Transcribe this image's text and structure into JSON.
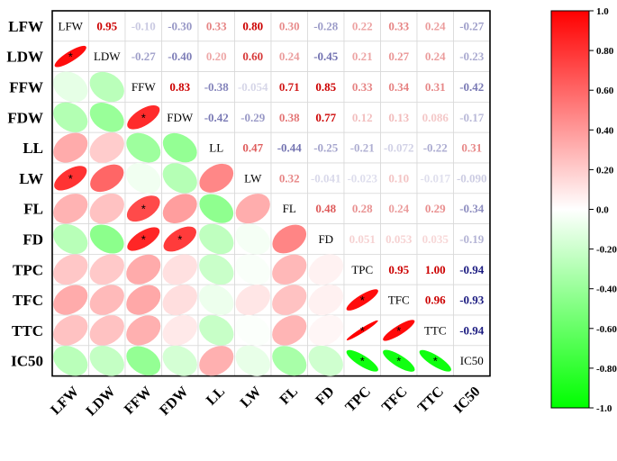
{
  "chart_data": {
    "type": "heatmap",
    "title": "",
    "variables": [
      "LFW",
      "LDW",
      "FFW",
      "FDW",
      "LL",
      "LW",
      "FL",
      "FD",
      "TPC",
      "TFC",
      "TTC",
      "IC50"
    ],
    "upper_values": [
      [
        null,
        0.95,
        -0.1,
        -0.3,
        0.33,
        0.8,
        0.3,
        -0.28,
        0.22,
        0.33,
        0.24,
        -0.27
      ],
      [
        null,
        null,
        -0.27,
        -0.4,
        0.2,
        0.6,
        0.24,
        -0.45,
        0.21,
        0.27,
        0.24,
        -0.23
      ],
      [
        null,
        null,
        null,
        0.83,
        -0.38,
        -0.054,
        0.71,
        0.85,
        0.33,
        0.34,
        0.31,
        -0.42
      ],
      [
        null,
        null,
        null,
        null,
        -0.42,
        -0.29,
        0.38,
        0.77,
        0.12,
        0.13,
        0.086,
        -0.17
      ],
      [
        null,
        null,
        null,
        null,
        null,
        0.47,
        -0.44,
        -0.25,
        -0.21,
        -0.072,
        -0.22,
        0.31
      ],
      [
        null,
        null,
        null,
        null,
        null,
        null,
        0.32,
        -0.041,
        -0.023,
        0.1,
        -0.017,
        -0.09
      ],
      [
        null,
        null,
        null,
        null,
        null,
        null,
        null,
        0.48,
        0.28,
        0.24,
        0.29,
        -0.34
      ],
      [
        null,
        null,
        null,
        null,
        null,
        null,
        null,
        null,
        0.051,
        0.053,
        0.035,
        -0.19
      ],
      [
        null,
        null,
        null,
        null,
        null,
        null,
        null,
        null,
        null,
        0.95,
        1.0,
        -0.94
      ],
      [
        null,
        null,
        null,
        null,
        null,
        null,
        null,
        null,
        null,
        null,
        0.96,
        -0.93
      ],
      [
        null,
        null,
        null,
        null,
        null,
        null,
        null,
        null,
        null,
        null,
        null,
        -0.94
      ],
      [
        null,
        null,
        null,
        null,
        null,
        null,
        null,
        null,
        null,
        null,
        null,
        null
      ]
    ],
    "upper_labels": [
      [
        null,
        "0.95",
        "-0.10",
        "-0.30",
        "0.33",
        "0.80",
        "0.30",
        "-0.28",
        "0.22",
        "0.33",
        "0.24",
        "-0.27"
      ],
      [
        null,
        null,
        "-0.27",
        "-0.40",
        "0.20",
        "0.60",
        "0.24",
        "-0.45",
        "0.21",
        "0.27",
        "0.24",
        "-0.23"
      ],
      [
        null,
        null,
        null,
        "0.83",
        "-0.38",
        "-0.054",
        "0.71",
        "0.85",
        "0.33",
        "0.34",
        "0.31",
        "-0.42"
      ],
      [
        null,
        null,
        null,
        null,
        "-0.42",
        "-0.29",
        "0.38",
        "0.77",
        "0.12",
        "0.13",
        "0.086",
        "-0.17"
      ],
      [
        null,
        null,
        null,
        null,
        null,
        "0.47",
        "-0.44",
        "-0.25",
        "-0.21",
        "-0.072",
        "-0.22",
        "0.31"
      ],
      [
        null,
        null,
        null,
        null,
        null,
        null,
        "0.32",
        "-0.041",
        "-0.023",
        "0.10",
        "-0.017",
        "-0.090"
      ],
      [
        null,
        null,
        null,
        null,
        null,
        null,
        null,
        "0.48",
        "0.28",
        "0.24",
        "0.29",
        "-0.34"
      ],
      [
        null,
        null,
        null,
        null,
        null,
        null,
        null,
        null,
        "0.051",
        "0.053",
        "0.035",
        "-0.19"
      ],
      [
        null,
        null,
        null,
        null,
        null,
        null,
        null,
        null,
        null,
        "0.95",
        "1.00",
        "-0.94"
      ],
      [
        null,
        null,
        null,
        null,
        null,
        null,
        null,
        null,
        null,
        null,
        "0.96",
        "-0.93"
      ],
      [
        null,
        null,
        null,
        null,
        null,
        null,
        null,
        null,
        null,
        null,
        null,
        "-0.94"
      ],
      [
        null,
        null,
        null,
        null,
        null,
        null,
        null,
        null,
        null,
        null,
        null,
        null
      ]
    ],
    "significant": [
      [
        1,
        0
      ],
      [
        5,
        0
      ],
      [
        3,
        2
      ],
      [
        6,
        2
      ],
      [
        7,
        2
      ],
      [
        7,
        3
      ],
      [
        9,
        8
      ],
      [
        10,
        8
      ],
      [
        10,
        9
      ],
      [
        11,
        8
      ],
      [
        11,
        9
      ],
      [
        11,
        10
      ]
    ],
    "star_symbol": "*",
    "colorbar": {
      "range": [
        -1.0,
        1.0
      ],
      "ticks": [
        "1.0",
        "0.80",
        "0.60",
        "0.40",
        "0.20",
        "0.0",
        "-0.20",
        "-0.40",
        "-0.60",
        "-0.80",
        "-1.0"
      ],
      "tick_values": [
        1.0,
        0.8,
        0.6,
        0.4,
        0.2,
        0.0,
        -0.2,
        -0.4,
        -0.6,
        -0.8,
        -1.0
      ],
      "placement": "right"
    },
    "colors": {
      "positive": "#ff0000",
      "neutral": "#ffffff",
      "negative": "#00ff00",
      "text_positive": "#cc0000",
      "text_negative": "#1a1a80"
    },
    "grid": true
  }
}
